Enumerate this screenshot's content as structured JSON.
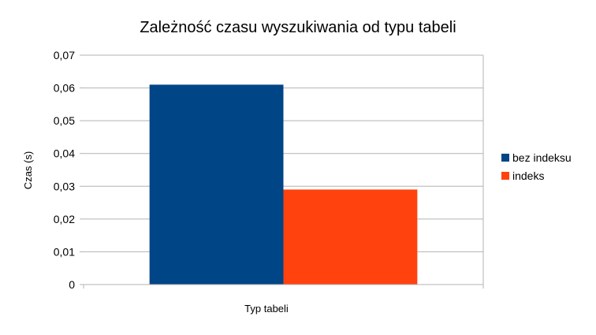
{
  "chart_data": {
    "type": "bar",
    "title": "Zależność czasu wyszukiwania od typu tabeli",
    "xlabel": "Typ tabeli",
    "ylabel": "Czas (s)",
    "categories": [
      ""
    ],
    "series": [
      {
        "name": "bez indeksu",
        "values": [
          0.061
        ],
        "color": "#004586"
      },
      {
        "name": "indeks",
        "values": [
          0.029
        ],
        "color": "#ff420e"
      }
    ],
    "ylim": [
      0,
      0.07
    ],
    "yticks": [
      "0",
      "0,01",
      "0,02",
      "0,03",
      "0,04",
      "0,05",
      "0,06",
      "0,07"
    ],
    "grid": true,
    "legend_position": "right"
  }
}
